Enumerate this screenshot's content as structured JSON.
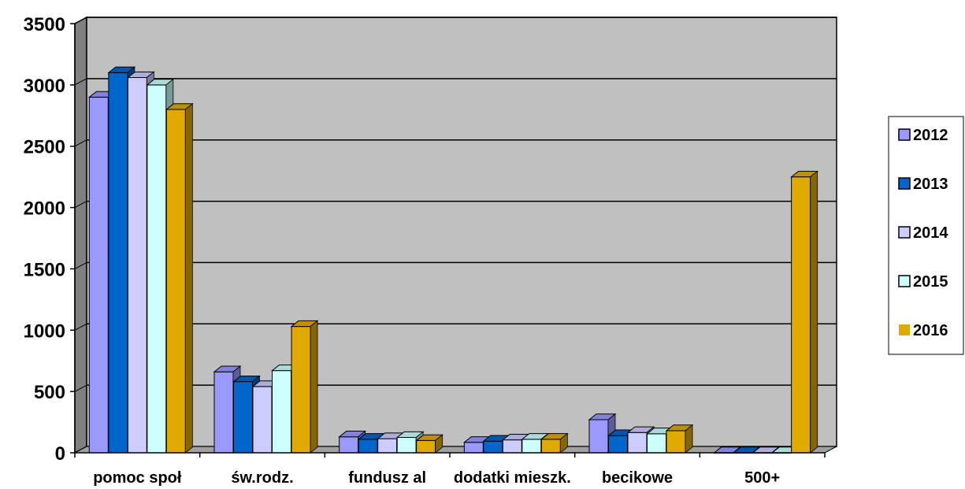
{
  "chart_data": {
    "type": "bar",
    "title": "",
    "xlabel": "",
    "ylabel": "",
    "ylim": [
      0,
      3500
    ],
    "yticks": [
      0,
      500,
      1000,
      1500,
      2000,
      2500,
      3000,
      3500
    ],
    "grid": true,
    "legend_position": "right",
    "three_d": true,
    "plot_background": "#c0c0c0",
    "categories": [
      "pomoc społ",
      "św.rodz.",
      "fundusz al",
      "dodatki mieszk.",
      "becikowe",
      "500+"
    ],
    "category_labels": [
      "pomoc społ",
      "św.rodz.",
      "fundusz al",
      "dodatki mieszk.",
      "becikowe",
      "500+"
    ],
    "series": [
      {
        "name": "2012",
        "color": "#9999ff",
        "values": [
          2900,
          660,
          130,
          85,
          270,
          0
        ]
      },
      {
        "name": "2013",
        "color": "#0066cc",
        "values": [
          3100,
          580,
          110,
          95,
          140,
          0
        ]
      },
      {
        "name": "2014",
        "color": "#ccccff",
        "values": [
          3060,
          540,
          115,
          105,
          165,
          0
        ]
      },
      {
        "name": "2015",
        "color": "#ccffff",
        "values": [
          3000,
          670,
          125,
          110,
          155,
          0
        ]
      },
      {
        "name": "2016",
        "color": "#e0aa00",
        "values": [
          2800,
          1030,
          100,
          110,
          180,
          2250
        ]
      }
    ]
  }
}
